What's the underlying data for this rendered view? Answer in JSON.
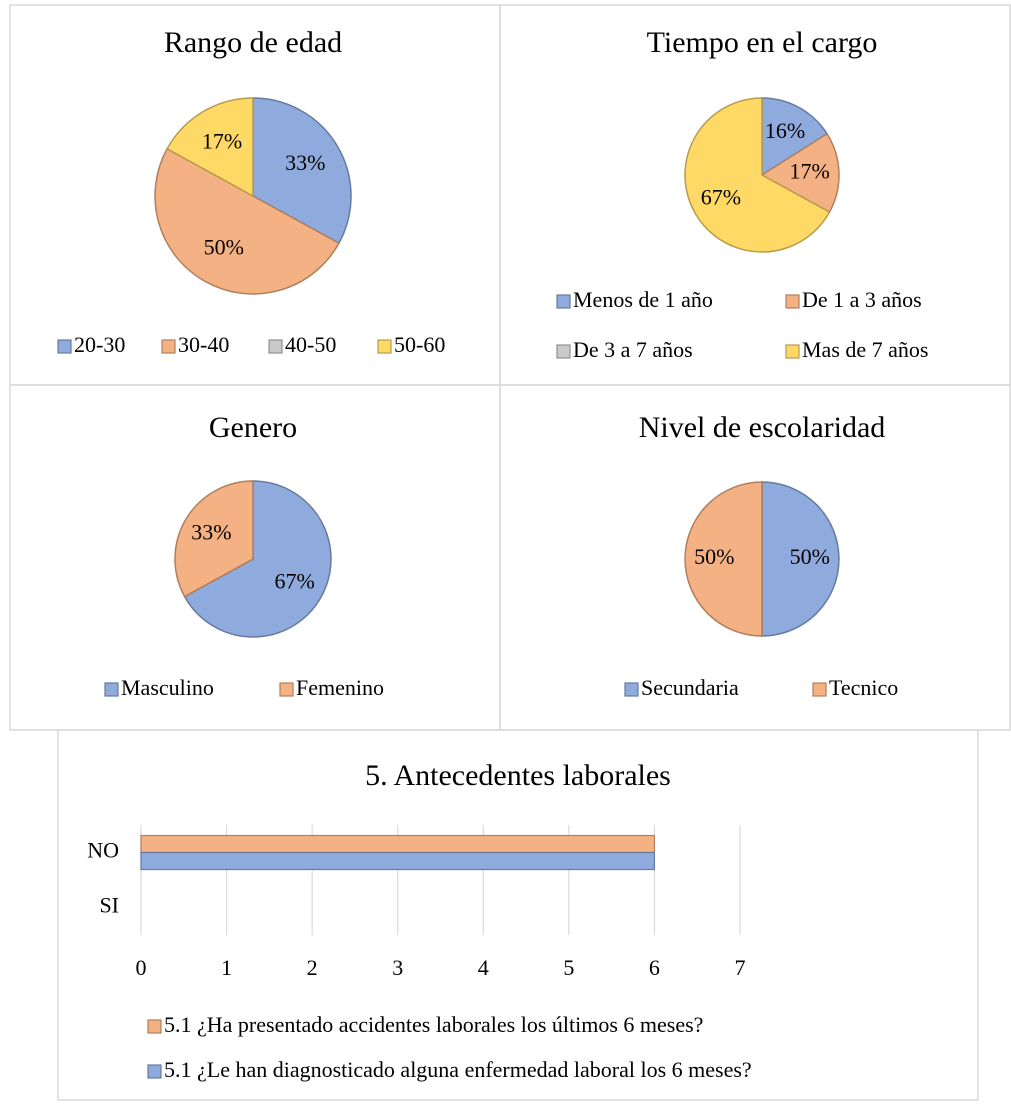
{
  "chart_data": [
    {
      "type": "pie",
      "title": "Rango de edad",
      "categories": [
        "20-30",
        "30-40",
        "40-50",
        "50-60"
      ],
      "values": [
        33,
        50,
        0,
        17
      ],
      "value_labels": [
        "33%",
        "50%",
        null,
        "17%"
      ],
      "colors": [
        "#8faadc",
        "#f4b183",
        "#c9c9c9",
        "#ffd966"
      ]
    },
    {
      "type": "pie",
      "title": "Tiempo en el cargo",
      "categories": [
        "Menos de 1 año",
        "De 1 a 3 años",
        "De 3 a 7 años",
        "Mas de 7 años"
      ],
      "values": [
        16,
        17,
        0,
        67
      ],
      "value_labels": [
        "16%",
        "17%",
        null,
        "67%"
      ],
      "colors": [
        "#8faadc",
        "#f4b183",
        "#c9c9c9",
        "#ffd966"
      ]
    },
    {
      "type": "pie",
      "title": "Genero",
      "categories": [
        "Masculino",
        "Femenino"
      ],
      "values": [
        67,
        33
      ],
      "value_labels": [
        "67%",
        "33%"
      ],
      "colors": [
        "#8faadc",
        "#f4b183"
      ]
    },
    {
      "type": "pie",
      "title": "Nivel de escolaridad",
      "categories": [
        "Secundaria",
        "Tecnico"
      ],
      "values": [
        50,
        50
      ],
      "value_labels": [
        "50%",
        "50%"
      ],
      "colors": [
        "#8faadc",
        "#f4b183"
      ]
    },
    {
      "type": "hbar",
      "title": "5. Antecedentes laborales",
      "categories": [
        "NO",
        "SI"
      ],
      "series": [
        {
          "name": "5.1 ¿Ha presentado accidentes laborales los últimos 6 meses?",
          "color": "#f4b183",
          "values": [
            6,
            0
          ]
        },
        {
          "name": "5.1 ¿Le han diagnosticado alguna enfermedad laboral los 6 meses?",
          "color": "#8faadc",
          "values": [
            6,
            0
          ]
        }
      ],
      "xlim": [
        0,
        7
      ],
      "xticks": [
        0,
        1,
        2,
        3,
        4,
        5,
        6,
        7
      ],
      "grid": true
    }
  ]
}
